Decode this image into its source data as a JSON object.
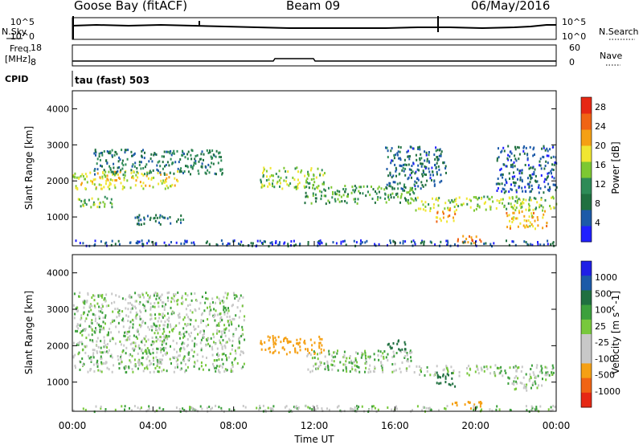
{
  "header": {
    "site": "Goose Bay (fitACF)",
    "beam": "Beam 09",
    "date": "06/May/2016"
  },
  "top_strips": {
    "nsky_label": "N.Sky",
    "nsky_ticks": [
      "10^5",
      "10^0"
    ],
    "nsearch_label": "N.Search",
    "nsearch_ticks": [
      "10^5",
      "10^0"
    ],
    "freq_label": "Freq.",
    "freq_unit": "[MHz]",
    "freq_ticks": [
      "18",
      "8"
    ],
    "nave_label": "Nave",
    "nave_ticks": [
      "60",
      "0"
    ],
    "cpid_label": "CPID",
    "cpid_value": "tau (fast) 503"
  },
  "colors": {
    "power_scale": [
      "#2020ff",
      "#1c5aa8",
      "#207040",
      "#2e8b57",
      "#7dc832",
      "#f0e632",
      "#f5a014",
      "#f06414",
      "#e62814"
    ],
    "velocity_scale": [
      "#2020e6",
      "#1c5aa8",
      "#207040",
      "#3ca03c",
      "#78c83c",
      "#c8c8c8",
      "#c8c8c8",
      "#f5a014",
      "#f06414",
      "#e62814"
    ]
  },
  "chart_data": [
    {
      "type": "heatmap",
      "title": "",
      "xlabel": "Time UT",
      "ylabel": "Slant Range [km]",
      "x_ticks": [
        "00:00",
        "04:00",
        "08:00",
        "12:00",
        "16:00",
        "20:00",
        "00:00"
      ],
      "y_ticks": [
        "1000",
        "2000",
        "3000",
        "4000"
      ],
      "ylim": [
        200,
        4500
      ],
      "colorbar_label": "Power [dB]",
      "colorbar_ticks": [
        "4",
        "8",
        "12",
        "16",
        "20",
        "24",
        "28"
      ],
      "colorbar_range": [
        0,
        30
      ],
      "regions": [
        {
          "t": [
            0.0,
            5.3
          ],
          "r": [
            1800,
            2300
          ],
          "v": 18
        },
        {
          "t": [
            0.0,
            2.0
          ],
          "r": [
            1300,
            1600
          ],
          "v": 14
        },
        {
          "t": [
            1.0,
            7.5
          ],
          "r": [
            2200,
            2900
          ],
          "v": 9
        },
        {
          "t": [
            3.0,
            5.5
          ],
          "r": [
            800,
            1100
          ],
          "v": 8
        },
        {
          "t": [
            9.3,
            12.5
          ],
          "r": [
            1800,
            2400
          ],
          "v": 15
        },
        {
          "t": [
            11.5,
            17.0
          ],
          "r": [
            1400,
            1900
          ],
          "v": 12
        },
        {
          "t": [
            15.5,
            18.5
          ],
          "r": [
            1800,
            3000
          ],
          "v": 7
        },
        {
          "t": [
            17.0,
            24.0
          ],
          "r": [
            1200,
            1600
          ],
          "v": 16
        },
        {
          "t": [
            18.0,
            19.0
          ],
          "r": [
            900,
            1300
          ],
          "v": 22
        },
        {
          "t": [
            18.8,
            20.3
          ],
          "r": [
            300,
            500
          ],
          "v": 24
        },
        {
          "t": [
            21.5,
            23.5
          ],
          "r": [
            700,
            1200
          ],
          "v": 20
        },
        {
          "t": [
            21.0,
            24.0
          ],
          "r": [
            1700,
            3000
          ],
          "v": 6
        },
        {
          "t": [
            0.0,
            24.0
          ],
          "r": [
            220,
            380
          ],
          "v": 5
        }
      ]
    },
    {
      "type": "heatmap",
      "title": "",
      "xlabel": "Time UT",
      "ylabel": "Slant Range [km]",
      "x_ticks": [
        "00:00",
        "04:00",
        "08:00",
        "12:00",
        "16:00",
        "20:00",
        "00:00"
      ],
      "y_ticks": [
        "1000",
        "2000",
        "3000",
        "4000"
      ],
      "ylim": [
        200,
        4500
      ],
      "colorbar_label": "Velocity [m s^-1]",
      "colorbar_ticks": [
        "1000",
        "500",
        "100",
        "25",
        "-25",
        "-100",
        "-500",
        "-1000"
      ],
      "colorbar_range": [
        -1000,
        1000
      ],
      "regions": [
        {
          "t": [
            0.0,
            8.5
          ],
          "r": [
            1300,
            3500
          ],
          "v": 0
        },
        {
          "t": [
            9.3,
            12.5
          ],
          "r": [
            1800,
            2300
          ],
          "v": -400
        },
        {
          "t": [
            11.5,
            17.0
          ],
          "r": [
            1300,
            1900
          ],
          "v": 0
        },
        {
          "t": [
            17.0,
            24.0
          ],
          "r": [
            1200,
            1500
          ],
          "v": 0
        },
        {
          "t": [
            18.0,
            19.0
          ],
          "r": [
            900,
            1300
          ],
          "v": 200
        },
        {
          "t": [
            18.8,
            20.3
          ],
          "r": [
            300,
            500
          ],
          "v": -300
        },
        {
          "t": [
            21.5,
            23.5
          ],
          "r": [
            800,
            1200
          ],
          "v": 0
        },
        {
          "t": [
            15.5,
            16.5
          ],
          "r": [
            1900,
            2200
          ],
          "v": 150
        },
        {
          "t": [
            0.0,
            24.0
          ],
          "r": [
            220,
            380
          ],
          "v": 0
        }
      ]
    }
  ]
}
